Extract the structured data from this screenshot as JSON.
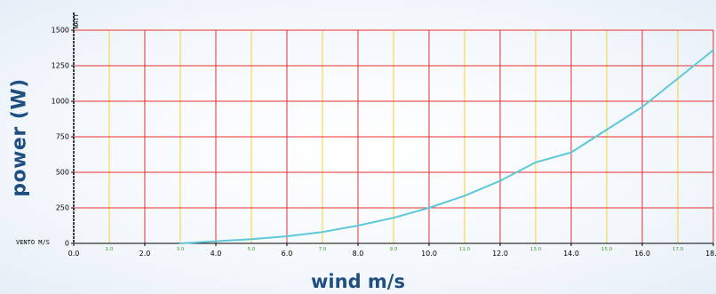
{
  "chart_data": {
    "type": "line",
    "title": "",
    "xlabel": "wind m/s",
    "ylabel": "power (W)",
    "y_unit_label": "WATT",
    "x_unit_label": "VENTO M/S",
    "xlim": [
      0,
      18
    ],
    "ylim": [
      0,
      1500
    ],
    "grid": true,
    "x_ticks_major": [
      "0.0",
      "2.0",
      "4.0",
      "6.0",
      "8.0",
      "10.0",
      "12.0",
      "14.0",
      "16.0",
      "18.0"
    ],
    "x_ticks_minor": [
      "1.0",
      "3.0",
      "5.0",
      "7.0",
      "9.0",
      "11.0",
      "13.0",
      "15.0",
      "17.0"
    ],
    "y_ticks": [
      "0",
      "250",
      "500",
      "750",
      "1000",
      "1250",
      "1500"
    ],
    "series": [
      {
        "x": [
          3,
          4,
          5,
          6,
          7,
          8,
          9,
          10,
          11,
          12,
          13,
          14,
          15,
          16,
          17,
          18
        ],
        "y": [
          0,
          15,
          30,
          50,
          80,
          125,
          180,
          250,
          335,
          440,
          570,
          640,
          800,
          960,
          1160,
          1360
        ]
      }
    ],
    "colors": {
      "major_grid": "#e53030",
      "minor_grid": "#f0d23c",
      "line": "#5cc8d8",
      "axis": "#000000",
      "minor_tick_text": "#3a9a2a",
      "axis_title": "#1f4e80"
    }
  }
}
